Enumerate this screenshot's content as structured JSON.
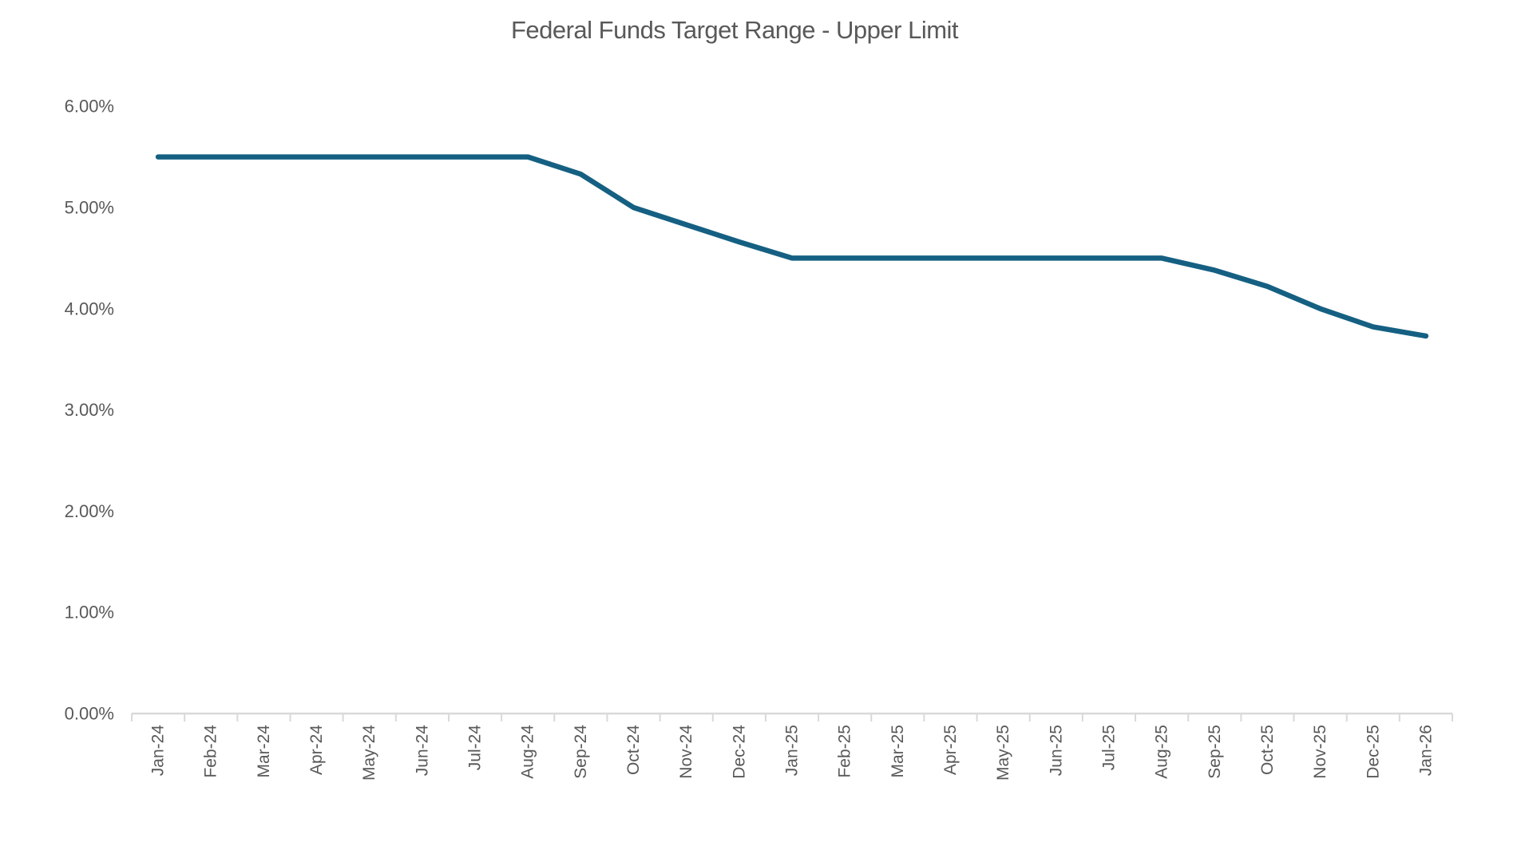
{
  "chart_data": {
    "type": "line",
    "title": "Federal Funds Target Range - Upper Limit",
    "categories": [
      "Jan-24",
      "Feb-24",
      "Mar-24",
      "Apr-24",
      "May-24",
      "Jun-24",
      "Jul-24",
      "Aug-24",
      "Sep-24",
      "Oct-24",
      "Nov-24",
      "Dec-24",
      "Jan-25",
      "Feb-25",
      "Mar-25",
      "Apr-25",
      "May-25",
      "Jun-25",
      "Jul-25",
      "Aug-25",
      "Sep-25",
      "Oct-25",
      "Nov-25",
      "Dec-25",
      "Jan-26"
    ],
    "values": [
      5.5,
      5.5,
      5.5,
      5.5,
      5.5,
      5.5,
      5.5,
      5.5,
      5.33,
      5.0,
      4.83,
      4.66,
      4.5,
      4.5,
      4.5,
      4.5,
      4.5,
      4.5,
      4.5,
      4.5,
      4.38,
      4.22,
      4.0,
      3.82,
      3.73
    ],
    "yticks": [
      "0.00%",
      "1.00%",
      "2.00%",
      "3.00%",
      "4.00%",
      "5.00%",
      "6.00%"
    ],
    "ylim": [
      0,
      6
    ],
    "xlabel": "",
    "ylabel": "",
    "grid": false,
    "legend": false,
    "colors": {
      "line": "#156082",
      "axis": "#d9d9d9",
      "tick_text": "#595959",
      "title_text": "#595959"
    }
  }
}
